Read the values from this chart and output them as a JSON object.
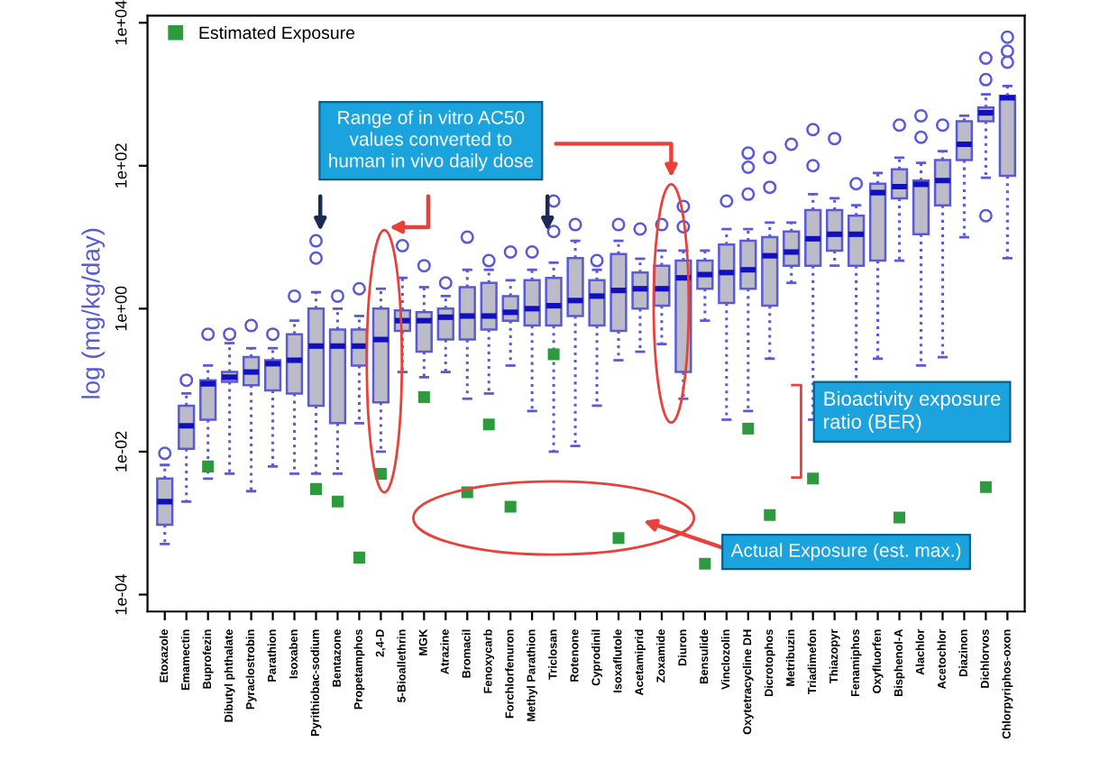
{
  "chart_data": {
    "type": "box",
    "ylabel": "log (mg/kg/day)",
    "categories": [
      "Etoxazole",
      "Emamectin",
      "Buprofezin",
      "Dibutyl phthalate",
      "Pyraclostrobin",
      "Parathion",
      "Isoxaben",
      "Pyrithiobac-sodium",
      "Bentazone",
      "Propetamphos",
      "2,4-D",
      "5-Bioallethrin",
      "MGK",
      "Atrazine",
      "Bromacil",
      "Fenoxycarb",
      "Forchlorfenuron",
      "Methyl Parathion",
      "Triclosan",
      "Rotenone",
      "Cyprodinil",
      "Isoxaflutole",
      "Acetamiprid",
      "Zoxamide",
      "Diuron",
      "Bensulide",
      "Vinclozolin",
      "Oxytetracycline DH",
      "Dicrotophos",
      "Metribuzin",
      "Triadimefon",
      "Thiazopyr",
      "Fenamiphos",
      "Oxyfluorfen",
      "Bisphenol-A",
      "Alachlor",
      "Acetochlor",
      "Diazinon",
      "Dichlorvos",
      "Chlorpyriphos-oxon"
    ],
    "log": "y",
    "ylim": [
      5.8e-05,
      12600
    ],
    "yticks": [
      {
        "value": 0.0001,
        "label": "1e-04"
      },
      {
        "value": 0.01,
        "label": "1e-02"
      },
      {
        "value": 1,
        "label": "1e+00"
      },
      {
        "value": 100,
        "label": "1e+02"
      },
      {
        "value": 10000,
        "label": "1e+04"
      }
    ],
    "grid": false,
    "legend": "top left",
    "series": [
      {
        "color": "#bcbcc8",
        "boxes": [
          {
            "low": 0.00051,
            "q1": 0.00095,
            "median": 0.002,
            "q3": 0.0042,
            "high": 0.0065,
            "outliers": [
              0.0095
            ]
          },
          {
            "low": 0.002,
            "q1": 0.011,
            "median": 0.023,
            "q3": 0.044,
            "high": 0.065,
            "outliers": [
              0.1
            ]
          },
          {
            "low": 0.0042,
            "q1": 0.028,
            "median": 0.089,
            "q3": 0.1,
            "high": 0.16,
            "outliers": [
              0.44
            ]
          },
          {
            "low": 0.0049,
            "q1": 0.095,
            "median": 0.11,
            "q3": 0.13,
            "high": 0.33,
            "outliers": [
              0.44
            ]
          },
          {
            "low": 0.0028,
            "q1": 0.085,
            "median": 0.13,
            "q3": 0.21,
            "high": 0.28,
            "outliers": [
              0.58
            ]
          },
          {
            "low": 0.0062,
            "q1": 0.072,
            "median": 0.17,
            "q3": 0.19,
            "high": 0.28,
            "outliers": [
              0.44
            ]
          },
          {
            "low": 0.0049,
            "q1": 0.065,
            "median": 0.19,
            "q3": 0.44,
            "high": 0.68,
            "outliers": [
              1.5
            ]
          },
          {
            "low": 0.0049,
            "q1": 0.044,
            "median": 0.3,
            "q3": 1,
            "high": 1.7,
            "outliers": [
              5.1,
              8.9
            ]
          },
          {
            "low": 0.0049,
            "q1": 0.025,
            "median": 0.3,
            "q3": 0.51,
            "high": 1,
            "outliers": [
              1.5
            ]
          },
          {
            "low": 0.025,
            "q1": 0.16,
            "median": 0.3,
            "q3": 0.51,
            "high": 0.79,
            "outliers": [
              1.9
            ]
          },
          {
            "low": 0.01,
            "q1": 0.049,
            "median": 0.37,
            "q3": 1,
            "high": 1.9
          },
          {
            "low": 0.13,
            "q1": 0.49,
            "median": 0.68,
            "q3": 0.95,
            "high": 2.7,
            "outliers": [
              7.6
            ]
          },
          {
            "low": 0.11,
            "q1": 0.25,
            "median": 0.68,
            "q3": 0.89,
            "high": 2,
            "outliers": [
              4
            ]
          },
          {
            "low": 0.13,
            "q1": 0.37,
            "median": 0.76,
            "q3": 1,
            "high": 1.5,
            "outliers": [
              2.3
            ]
          },
          {
            "low": 0.055,
            "q1": 0.37,
            "median": 0.79,
            "q3": 2,
            "high": 3.5,
            "outliers": [
              10
            ]
          },
          {
            "low": 0.065,
            "q1": 0.51,
            "median": 0.79,
            "q3": 2.3,
            "high": 3.5,
            "outliers": [
              4.7
            ]
          },
          {
            "low": 0.16,
            "q1": 0.68,
            "median": 0.89,
            "q3": 1.5,
            "high": 2.5,
            "outliers": [
              6.2
            ]
          },
          {
            "low": 0.037,
            "q1": 0.58,
            "median": 1,
            "q3": 2.5,
            "high": 3.5,
            "outliers": [
              6.2
            ]
          },
          {
            "low": 0.01,
            "q1": 0.58,
            "median": 1.1,
            "q3": 2.7,
            "high": 4.4,
            "outliers": [
              12,
              32
            ]
          },
          {
            "low": 0.012,
            "q1": 0.79,
            "median": 1.3,
            "q3": 5.1,
            "high": 8.9,
            "outliers": [
              15
            ]
          },
          {
            "low": 0.044,
            "q1": 0.58,
            "median": 1.5,
            "q3": 2.5,
            "high": 3.5,
            "outliers": [
              4.7
            ]
          },
          {
            "low": 0.19,
            "q1": 0.49,
            "median": 1.8,
            "q3": 5.8,
            "high": 8.9,
            "outliers": [
              15
            ]
          },
          {
            "low": 0.25,
            "q1": 1,
            "median": 1.9,
            "q3": 3.2,
            "high": 5,
            "outliers": [
              13
            ]
          },
          {
            "low": 0.32,
            "q1": 1.1,
            "median": 1.9,
            "q3": 4,
            "high": 6.5,
            "outliers": [
              15
            ]
          },
          {
            "low": 0.055,
            "q1": 0.13,
            "median": 2.7,
            "q3": 4.7,
            "high": 6.5,
            "outliers": [
              14,
              27
            ]
          },
          {
            "low": 0.68,
            "q1": 1.9,
            "median": 3,
            "q3": 4.7,
            "high": 6.5
          },
          {
            "low": 0.028,
            "q1": 1.2,
            "median": 3.2,
            "q3": 7.9,
            "high": 13,
            "outliers": [
              32
            ]
          },
          {
            "low": 0.037,
            "q1": 1.9,
            "median": 3.5,
            "q3": 8.9,
            "high": 13,
            "outliers": [
              40,
              95,
              150
            ]
          },
          {
            "low": 0.2,
            "q1": 1.1,
            "median": 5.5,
            "q3": 10,
            "high": 16,
            "outliers": [
              50,
              130
            ]
          },
          {
            "low": 2.3,
            "q1": 4,
            "median": 6.2,
            "q3": 12,
            "high": 16,
            "outliers": [
              200
            ]
          },
          {
            "low": 0.028,
            "q1": 4,
            "median": 9.5,
            "q3": 24,
            "high": 40,
            "outliers": [
              100,
              320
            ]
          },
          {
            "low": 4,
            "q1": 6.5,
            "median": 11,
            "q3": 24,
            "high": 35,
            "outliers": [
              240
            ]
          },
          {
            "low": 0.037,
            "q1": 4,
            "median": 11,
            "q3": 20,
            "high": 28,
            "outliers": [
              56
            ]
          },
          {
            "low": 0.2,
            "q1": 4.7,
            "median": 42,
            "q3": 56,
            "high": 79
          },
          {
            "low": 4.7,
            "q1": 35,
            "median": 51,
            "q3": 89,
            "high": 130,
            "outliers": [
              370
            ]
          },
          {
            "low": 0.16,
            "q1": 11,
            "median": 55,
            "q3": 62,
            "high": 110,
            "outliers": [
              250,
              500
            ]
          },
          {
            "low": 0.21,
            "q1": 28,
            "median": 62,
            "q3": 120,
            "high": 160,
            "outliers": [
              370
            ]
          },
          {
            "low": 10,
            "q1": 120,
            "median": 200,
            "q3": 420,
            "high": 500
          },
          {
            "low": 68,
            "q1": 420,
            "median": 550,
            "q3": 650,
            "high": 1000,
            "outliers": [
              20,
              1600,
              3200
            ]
          },
          {
            "low": 5.1,
            "q1": 72,
            "median": 890,
            "q3": 950,
            "high": 1300,
            "outliers": [
              2800,
              4000,
              6300
            ]
          }
        ]
      },
      {
        "type": "scatter",
        "name": "Estimated Exposure",
        "color": "#2e9a3e",
        "marker": "square",
        "x": [
          "Buprofezin",
          "Pyrithiobac-sodium",
          "Bentazone",
          "Propetamphos",
          "2,4-D",
          "MGK",
          "Bromacil",
          "Fenoxycarb",
          "Forchlorfenuron",
          "Triclosan",
          "Isoxaflutole",
          "Bensulide",
          "Oxytetracycline DH",
          "Dicrotophos",
          "Triadimefon",
          "Bisphenol-A",
          "Dichlorvos"
        ],
        "values": [
          0.0062,
          0.003,
          0.002,
          0.00033,
          0.0049,
          0.058,
          0.0027,
          0.024,
          0.0017,
          0.23,
          0.00062,
          0.00027,
          0.021,
          0.0013,
          0.0042,
          0.0012,
          0.0032
        ]
      }
    ],
    "annotations": [
      "Range of in vitro AC50 values converted to human in vivo daily dose",
      "Bioactivity exposure ratio (BER)",
      "Actual Exposure (est. max.)"
    ]
  }
}
